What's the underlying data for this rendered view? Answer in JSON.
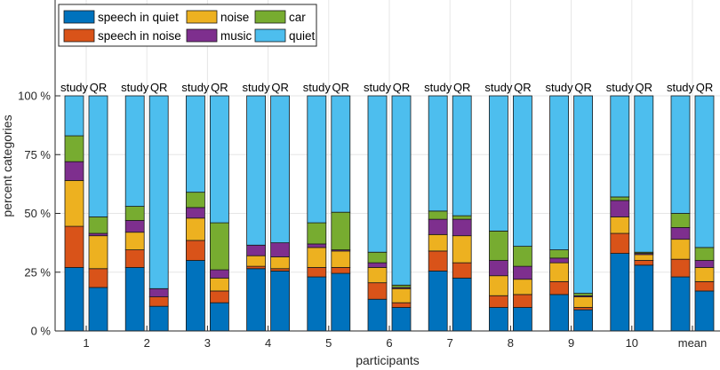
{
  "chart_data": {
    "type": "bar",
    "stacked": true,
    "xlabel": "participants",
    "ylabel": "percent categories",
    "ylim": [
      0,
      100
    ],
    "yticks": [
      0,
      25,
      50,
      75,
      100
    ],
    "ytick_labels": [
      "0 %",
      "25 %",
      "50 %",
      "75 %",
      "100 %"
    ],
    "grid": true,
    "legend_position": "top-left",
    "categories": [
      "1",
      "2",
      "3",
      "4",
      "5",
      "6",
      "7",
      "8",
      "9",
      "10",
      "mean"
    ],
    "bar_labels": [
      "study",
      "QR"
    ],
    "series": [
      {
        "name": "speech in quiet",
        "color": "#0072BD"
      },
      {
        "name": "speech in noise",
        "color": "#D95319"
      },
      {
        "name": "noise",
        "color": "#EDB120"
      },
      {
        "name": "music",
        "color": "#7E2F8E"
      },
      {
        "name": "car",
        "color": "#77AC30"
      },
      {
        "name": "quiet",
        "color": "#4DBEEE"
      }
    ],
    "legend_order": [
      "speech in quiet",
      "noise",
      "car",
      "speech in noise",
      "music",
      "quiet"
    ],
    "groups": [
      {
        "study": [
          27,
          17.5,
          19.5,
          8,
          11,
          17
        ],
        "qr": [
          18.5,
          8,
          14,
          1,
          7,
          51.5
        ]
      },
      {
        "study": [
          27,
          7.5,
          7.5,
          5,
          6,
          47
        ],
        "qr": [
          10.5,
          4,
          0,
          3.5,
          0,
          82
        ]
      },
      {
        "study": [
          30,
          8.5,
          9.5,
          4.5,
          6.5,
          41
        ],
        "qr": [
          12,
          5,
          5.5,
          3.5,
          20,
          54
        ]
      },
      {
        "study": [
          26.5,
          1,
          4.5,
          4.5,
          0,
          63.5
        ],
        "qr": [
          25.5,
          1,
          5,
          6,
          0,
          62.5
        ]
      },
      {
        "study": [
          23,
          4,
          8.5,
          1.5,
          9,
          54
        ],
        "qr": [
          24.5,
          2.5,
          7,
          0.5,
          16,
          49.5
        ]
      },
      {
        "study": [
          13.5,
          7,
          6.5,
          2,
          4.5,
          66.5
        ],
        "qr": [
          10,
          2,
          6,
          0.5,
          1,
          80.5
        ]
      },
      {
        "study": [
          25.5,
          8.5,
          7,
          6.5,
          3.5,
          49
        ],
        "qr": [
          22.5,
          6.5,
          11.5,
          7,
          1.5,
          51
        ]
      },
      {
        "study": [
          10,
          5,
          8.5,
          6.5,
          12.5,
          57.5
        ],
        "qr": [
          10,
          5.5,
          6.5,
          5.5,
          8.5,
          64
        ]
      },
      {
        "study": [
          15.5,
          5.5,
          8,
          2,
          3.5,
          65.5
        ],
        "qr": [
          9,
          1,
          4.5,
          0.5,
          1,
          84
        ]
      },
      {
        "study": [
          33,
          8.5,
          7,
          7,
          1.5,
          43
        ],
        "qr": [
          28,
          2,
          2.5,
          0.5,
          0.5,
          66.5
        ]
      },
      {
        "study": [
          23,
          7.5,
          8.5,
          5,
          6,
          50
        ],
        "qr": [
          17,
          4,
          6,
          3,
          5.5,
          64.5
        ]
      }
    ]
  }
}
